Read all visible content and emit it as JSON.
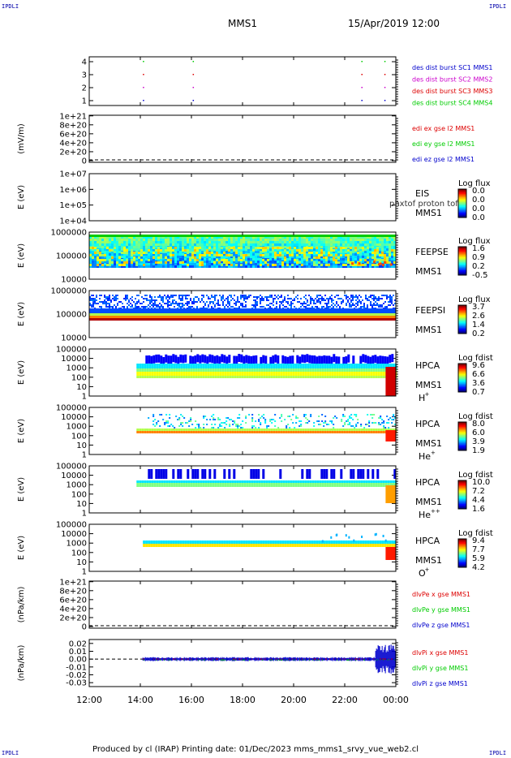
{
  "corner_mark": "IPDLI",
  "header": {
    "spacecraft": "MMS1",
    "datetime": "15/Apr/2019 12:00"
  },
  "footer": "Produced by cl (IRAP)   Printing date: 01/Dec/2023   mms_mms1_srvy_vue_web2.cl",
  "colors": {
    "red": "#dd0000",
    "green": "#00cc00",
    "blue": "#0000cc",
    "magenta": "#cc00cc"
  },
  "chart_data": {
    "type": "heatmap",
    "x_ticks": [
      "12:00",
      "14:00",
      "16:00",
      "18:00",
      "20:00",
      "22:00",
      "00:00"
    ],
    "x_range_hours": [
      12,
      24
    ],
    "panels": [
      {
        "id": "burst",
        "type": "scatter",
        "yticks": [
          "4",
          "3",
          "2",
          "1"
        ],
        "ylim": [
          0.5,
          4.5
        ],
        "legend": [
          {
            "text": "des dist burst SC1 MMS1",
            "color": "#0000cc"
          },
          {
            "text": "des dist burst SC2 MMS2",
            "color": "#cc00cc"
          },
          {
            "text": "des dist burst SC3 MMS3",
            "color": "#dd0000"
          },
          {
            "text": "des dist burst SC4 MMS4",
            "color": "#00cc00"
          }
        ],
        "burst_times_hours": [
          14.1,
          16.05,
          22.65,
          23.55
        ]
      },
      {
        "id": "edi",
        "type": "line",
        "ylabel": "(mV/m)",
        "yticks": [
          "1e+21",
          "8e+20",
          "6e+20",
          "4e+20",
          "2e+20",
          "0"
        ],
        "ylim": [
          0,
          1.05e+21
        ],
        "legend": [
          {
            "text": "edi ex gse l2 MMS1",
            "color": "#dd0000"
          },
          {
            "text": "edi ey gse l2 MMS1",
            "color": "#00cc00"
          },
          {
            "text": "edi ez gse l2 MMS1",
            "color": "#0000cc"
          }
        ]
      },
      {
        "id": "eis",
        "type": "heatmap",
        "ylabel": "E (eV)",
        "yticks": [
          "1e+07",
          "1e+06",
          "1e+05",
          "1e+04"
        ],
        "label": [
          "EIS",
          "MMS1"
        ],
        "overlay": "phxtof proton tof",
        "cbar_title": "Log flux",
        "cbar_ticks": [
          "0.0",
          "0.0",
          "0.0",
          "0.0"
        ]
      },
      {
        "id": "feepse",
        "type": "heatmap",
        "ylabel": "E (eV)",
        "yticks": [
          "1000000",
          "100000",
          "10000"
        ],
        "label": [
          "FEEPSE",
          "MMS1"
        ],
        "cbar_title": "Log flux",
        "cbar_ticks": [
          "1.6",
          "0.9",
          "0.2",
          "-0.5"
        ]
      },
      {
        "id": "feepsi",
        "type": "heatmap",
        "ylabel": "E (eV)",
        "yticks": [
          "1000000",
          "100000",
          "10000"
        ],
        "label": [
          "FEEPSI",
          "MMS1"
        ],
        "cbar_title": "Log flux",
        "cbar_ticks": [
          "3.7",
          "2.6",
          "1.4",
          "0.2"
        ]
      },
      {
        "id": "hpca_h",
        "type": "heatmap",
        "ylabel": "E (eV)",
        "yticks": [
          "100000",
          "10000",
          "1000",
          "100",
          "10",
          "1"
        ],
        "label": [
          "HPCA",
          "MMS1"
        ],
        "species": "H",
        "charge": "+",
        "cbar_title": "Log fdist",
        "cbar_ticks": [
          "9.6",
          "6.6",
          "3.6",
          "0.7"
        ]
      },
      {
        "id": "hpca_he",
        "type": "heatmap",
        "ylabel": "E (eV)",
        "yticks": [
          "100000",
          "10000",
          "1000",
          "100",
          "10",
          "1"
        ],
        "label": [
          "HPCA",
          "MMS1"
        ],
        "species": "He",
        "charge": "+",
        "cbar_title": "Log fdist",
        "cbar_ticks": [
          "8.0",
          "6.0",
          "3.9",
          "1.9"
        ]
      },
      {
        "id": "hpca_hepp",
        "type": "heatmap",
        "ylabel": "E (eV)",
        "yticks": [
          "100000",
          "10000",
          "1000",
          "100",
          "10",
          "1"
        ],
        "label": [
          "HPCA",
          "MMS1"
        ],
        "species": "He",
        "charge": "++",
        "cbar_title": "Log fdist",
        "cbar_ticks": [
          "10.0",
          "7.2",
          "4.4",
          "1.6"
        ]
      },
      {
        "id": "hpca_o",
        "type": "heatmap",
        "ylabel": "E (eV)",
        "yticks": [
          "100000",
          "10000",
          "1000",
          "100",
          "10",
          "1"
        ],
        "label": [
          "HPCA",
          "MMS1"
        ],
        "species": "O",
        "charge": "+",
        "cbar_title": "Log fdist",
        "cbar_ticks": [
          "9.4",
          "7.7",
          "5.9",
          "4.2"
        ]
      },
      {
        "id": "divpe",
        "type": "line",
        "ylabel": "(nPa/km)",
        "yticks": [
          "1e+21",
          "8e+20",
          "6e+20",
          "4e+20",
          "2e+20",
          "0"
        ],
        "ylim": [
          0,
          1.05e+21
        ],
        "legend": [
          {
            "text": "dlvPe x gse MMS1",
            "color": "#dd0000"
          },
          {
            "text": "dlvPe y gse MMS1",
            "color": "#00cc00"
          },
          {
            "text": "dlvPe z gse MMS1",
            "color": "#0000cc"
          }
        ]
      },
      {
        "id": "divpi",
        "type": "line",
        "ylabel": "(nPa/km)",
        "yticks": [
          "0.02",
          "0.01",
          "0.00",
          "-0.01",
          "-0.02",
          "-0.03"
        ],
        "ylim": [
          -0.035,
          0.025
        ],
        "legend": [
          {
            "text": "dlvPi x gse MMS1",
            "color": "#dd0000"
          },
          {
            "text": "dlvPi y gse MMS1",
            "color": "#00cc00"
          },
          {
            "text": "dlvPi z gse MMS1",
            "color": "#0000cc"
          }
        ]
      }
    ]
  }
}
